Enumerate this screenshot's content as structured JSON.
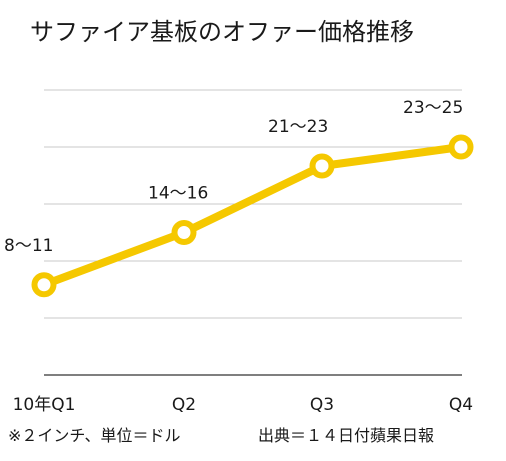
{
  "chart_data": {
    "type": "line",
    "title": "サファイア基板のオファー価格推移",
    "categories": [
      "10年Q1",
      "Q2",
      "Q3",
      "Q4"
    ],
    "series": [
      {
        "values": [
          9.5,
          15,
          22,
          24
        ]
      }
    ],
    "data_labels": [
      "8〜11",
      "14〜16",
      "21〜23",
      "23〜25"
    ],
    "ylim": [
      0,
      30
    ],
    "grid": true,
    "line_color": "#f5c800",
    "grid_color": "#c8c8c8"
  },
  "footnote_left": "※２インチ、単位＝ドル",
  "footnote_right": "出典＝１４日付蘋果日報"
}
